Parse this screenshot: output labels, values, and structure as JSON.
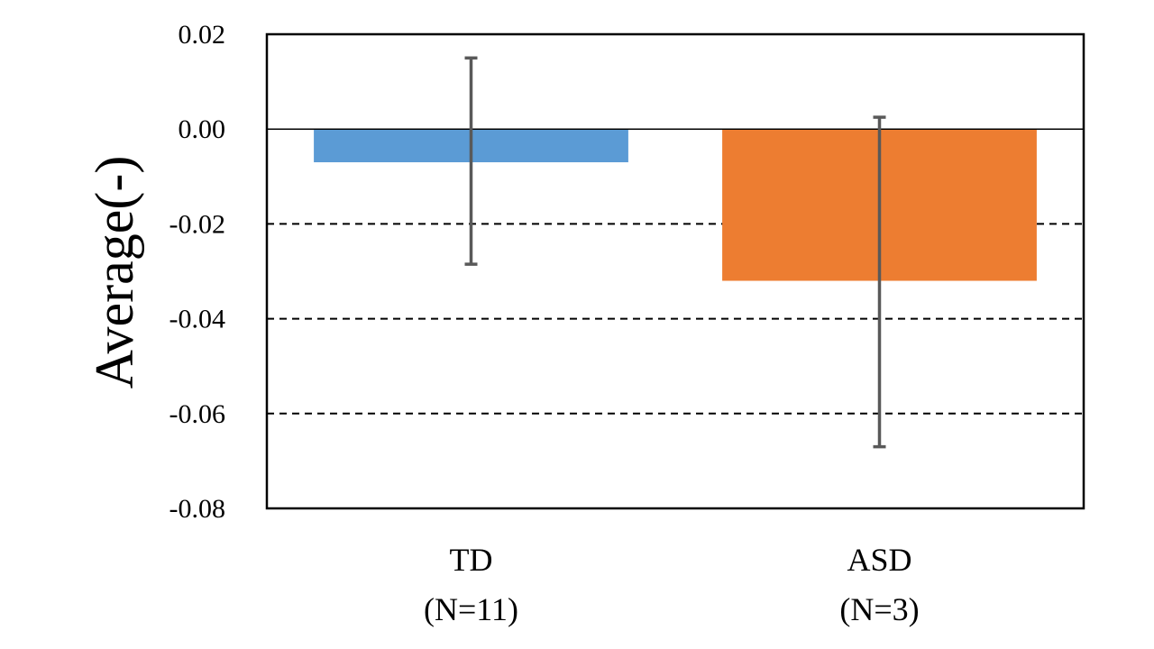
{
  "chart_data": {
    "type": "bar",
    "title": "",
    "xlabel": "",
    "ylabel": "Average(-)",
    "ylim": [
      -0.08,
      0.02
    ],
    "yticks": [
      0.02,
      0.0,
      -0.02,
      -0.04,
      -0.06,
      -0.08
    ],
    "ytick_labels": [
      "0.02",
      "0.00",
      "-0.02",
      "-0.04",
      "-0.06",
      "-0.08"
    ],
    "categories": [
      {
        "name": "TD",
        "n_label": "(N=11)"
      },
      {
        "name": "ASD",
        "n_label": "(N=3)"
      }
    ],
    "values": [
      -0.007,
      -0.032
    ],
    "error_upper": [
      0.015,
      0.0025
    ],
    "error_lower": [
      -0.0285,
      -0.067
    ],
    "colors": [
      "#5B9BD5",
      "#ED7D31"
    ],
    "gridlines": "dashed",
    "legend": "none"
  }
}
